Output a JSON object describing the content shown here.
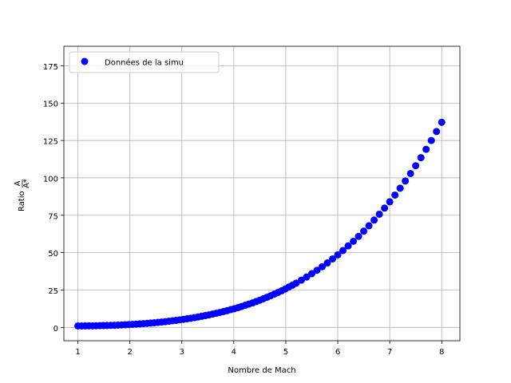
{
  "chart_data": {
    "type": "scatter",
    "xlabel": "Nombre de Mach",
    "ylabel_prefix": "Ratio",
    "ylabel_num": "A",
    "ylabel_den": "A*",
    "xlim": [
      0.73,
      8.35
    ],
    "ylim": [
      -8.9,
      188
    ],
    "x_ticks": [
      1,
      2,
      3,
      4,
      5,
      6,
      7,
      8
    ],
    "y_ticks": [
      0,
      25,
      50,
      75,
      100,
      125,
      150,
      175
    ],
    "grid": true,
    "legend_position": "upper-left",
    "series": [
      {
        "name": "Données de la simu",
        "color": "#0000ff",
        "marker": "circle",
        "x": [
          1.0,
          1.07,
          1.14,
          1.21,
          1.28,
          1.35,
          1.42,
          1.49,
          1.56,
          1.63,
          1.7,
          1.77,
          1.84,
          1.91,
          1.98,
          2.05,
          2.12,
          2.19,
          2.26,
          2.33,
          2.4,
          2.47,
          2.54,
          2.61,
          2.68,
          2.75,
          2.82,
          2.89,
          2.96,
          3.03,
          3.1,
          3.17,
          3.24,
          3.31,
          3.38,
          3.45,
          3.52,
          3.59,
          3.66,
          3.73,
          3.8,
          3.87,
          3.94,
          4.01,
          4.08,
          4.15,
          4.22,
          4.29,
          4.36,
          4.43,
          4.5,
          4.57,
          4.64,
          4.71,
          4.78,
          4.85,
          4.92,
          4.99,
          5.06,
          5.13,
          5.2,
          5.3,
          5.4,
          5.5,
          5.6,
          5.7,
          5.8,
          5.9,
          6.0,
          6.1,
          6.2,
          6.3,
          6.4,
          6.5,
          6.6,
          6.7,
          6.8,
          6.9,
          7.0,
          7.1,
          7.2,
          7.3,
          7.4,
          7.5,
          7.6,
          7.7,
          7.8,
          7.9,
          8.0
        ],
        "y": [
          1.0,
          1.0,
          1.02,
          1.04,
          1.07,
          1.12,
          1.17,
          1.23,
          1.3,
          1.38,
          1.47,
          1.56,
          1.67,
          1.79,
          1.91,
          2.05,
          2.2,
          2.36,
          2.53,
          2.72,
          2.92,
          3.13,
          3.36,
          3.6,
          3.86,
          4.13,
          4.42,
          4.73,
          5.05,
          5.4,
          5.76,
          6.14,
          6.54,
          6.97,
          7.41,
          7.88,
          8.37,
          8.89,
          9.43,
          10.0,
          10.6,
          11.2,
          11.9,
          12.5,
          13.2,
          14.0,
          14.8,
          15.6,
          16.4,
          17.3,
          18.2,
          19.2,
          20.2,
          21.2,
          22.3,
          23.4,
          24.5,
          25.7,
          27.0,
          28.3,
          29.6,
          31.6,
          33.7,
          35.9,
          38.2,
          40.6,
          43.1,
          45.8,
          48.5,
          51.4,
          54.5,
          57.6,
          60.9,
          64.4,
          68.0,
          71.8,
          75.7,
          79.8,
          84.0,
          88.5,
          93.1,
          97.9,
          102.9,
          108.1,
          113.5,
          119.1,
          125.0,
          131.0,
          137.2
        ]
      }
    ]
  }
}
